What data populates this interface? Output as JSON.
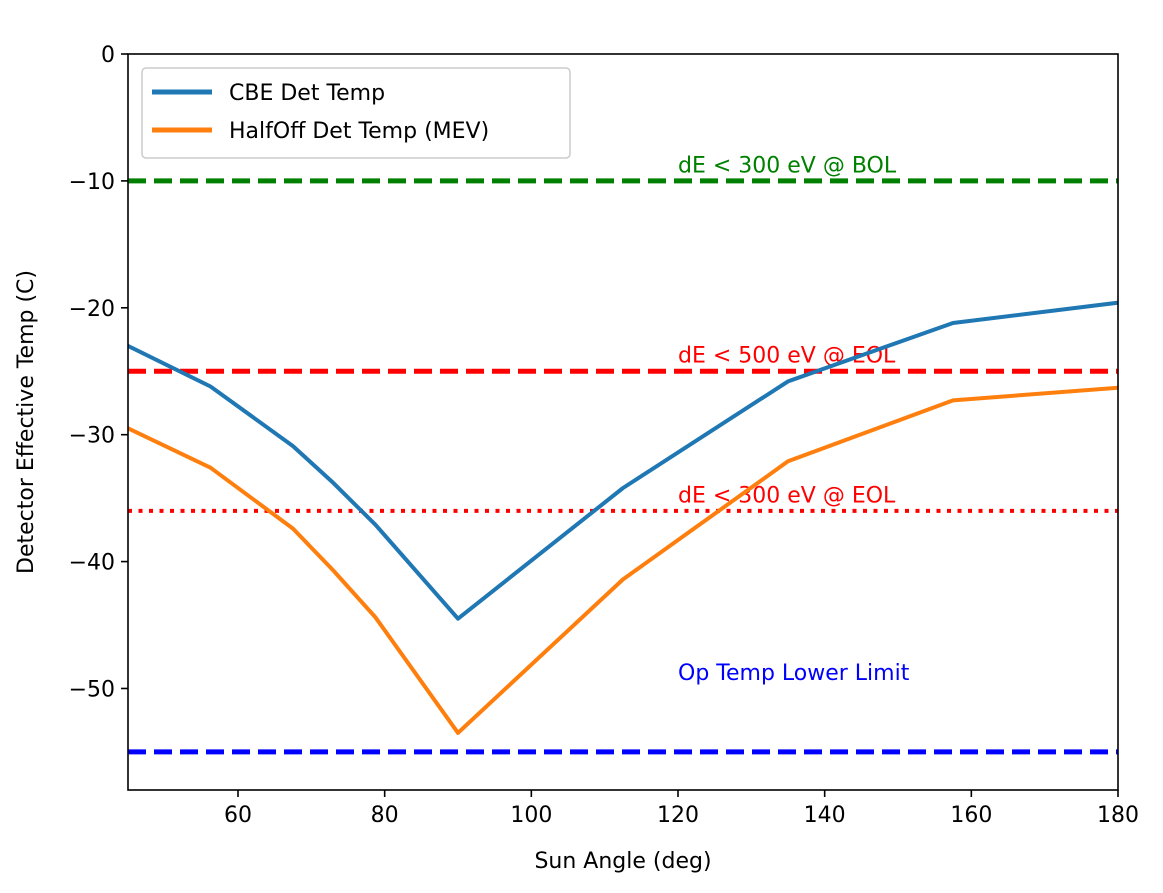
{
  "chart_data": {
    "type": "line",
    "title": "",
    "xlabel": "Sun Angle (deg)",
    "ylabel": "Detector Effective Temp (C)",
    "xlim": [
      45,
      180
    ],
    "ylim": [
      -58,
      0
    ],
    "xticks": [
      60,
      80,
      100,
      120,
      140,
      160,
      180
    ],
    "yticks": [
      0,
      -10,
      -20,
      -30,
      -40,
      -50
    ],
    "ytick_labels": [
      "0",
      "−10",
      "−20",
      "−30",
      "−40",
      "−50"
    ],
    "grid": false,
    "legend": "top-left",
    "series": [
      {
        "name": "CBE Det Temp",
        "color": "#1f77b4",
        "x": [
          45,
          56.25,
          67.5,
          73,
          78.75,
          90,
          112.5,
          135,
          157.5,
          180
        ],
        "y": [
          -23.0,
          -26.2,
          -30.9,
          -33.8,
          -37.1,
          -44.5,
          -34.2,
          -25.8,
          -21.2,
          -19.6
        ]
      },
      {
        "name": "HalfOff Det Temp (MEV)",
        "color": "#ff7f0e",
        "x": [
          45,
          56.25,
          67.5,
          73,
          78.75,
          90,
          112.5,
          135,
          157.5,
          180
        ],
        "y": [
          -29.5,
          -32.6,
          -37.4,
          -40.7,
          -44.4,
          -53.5,
          -41.4,
          -32.1,
          -27.3,
          -26.3
        ]
      }
    ],
    "reference_lines": [
      {
        "y": -10,
        "color": "#008000",
        "style": "dashed",
        "label": "dE < 300 eV @ BOL",
        "label_x": 120,
        "label_y": -8.7
      },
      {
        "y": -25,
        "color": "#ff0000",
        "style": "dashed",
        "label": "dE < 500 eV @ EOL",
        "label_x": 120,
        "label_y": -23.7
      },
      {
        "y": -36,
        "color": "#ff0000",
        "style": "dotted",
        "label": "dE < 300 eV @ EOL",
        "label_x": 120,
        "label_y": -34.7
      },
      {
        "y": -55,
        "color": "#0000ff",
        "style": "dashed",
        "label": "Op Temp Lower Limit",
        "label_x": 120,
        "label_y": -48.7
      }
    ]
  }
}
